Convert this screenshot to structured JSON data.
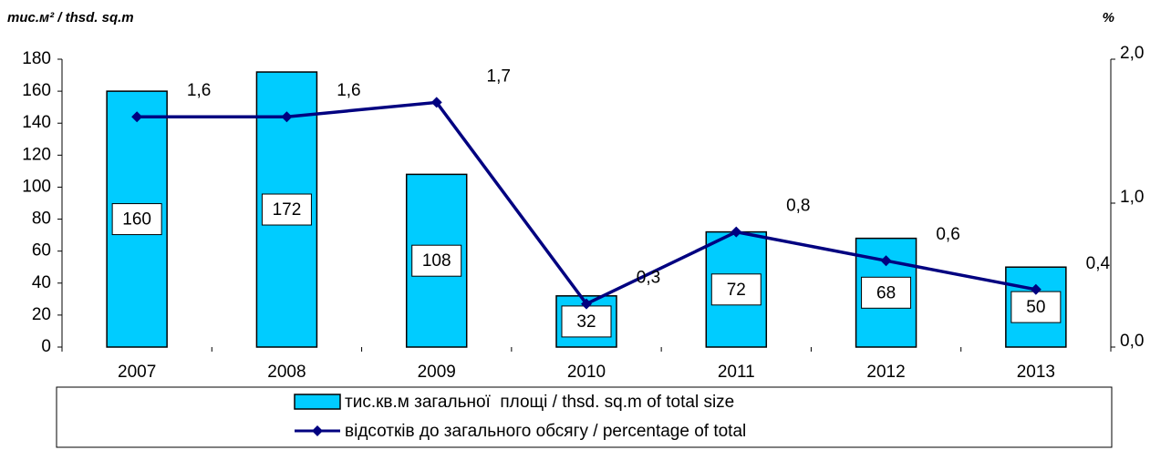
{
  "chart_data": {
    "type": "bar",
    "y_label": "тис.м² / thsd. sq.m",
    "y2_label": "%",
    "categories": [
      "2007",
      "2008",
      "2009",
      "2010",
      "2011",
      "2012",
      "2013"
    ],
    "series": [
      {
        "name": "тис.кв.м загальної  площі / thsd. sq.m of total size",
        "type": "bar",
        "color": "#00ccff",
        "values": [
          160,
          172,
          108,
          32,
          72,
          68,
          50
        ]
      },
      {
        "name": "відсотків до загального обсягу / percentage of total",
        "type": "line",
        "axis": "y2",
        "color": "#000080",
        "values": [
          1.6,
          1.6,
          1.7,
          0.3,
          0.8,
          0.6,
          0.4
        ],
        "value_labels": [
          "1,6",
          "1,6",
          "1,7",
          "0,3",
          "0,8",
          "0,6",
          "0,4"
        ]
      }
    ],
    "ylim": [
      0,
      180
    ],
    "yticks": [
      0,
      20,
      40,
      60,
      80,
      100,
      120,
      140,
      160,
      180
    ],
    "y2lim": [
      0,
      2
    ],
    "y2ticks": [
      {
        "value": 0,
        "label": "0,0"
      },
      {
        "value": 1,
        "label": "1,0"
      },
      {
        "value": 2,
        "label": "2,0"
      }
    ],
    "legend": "bottom"
  }
}
